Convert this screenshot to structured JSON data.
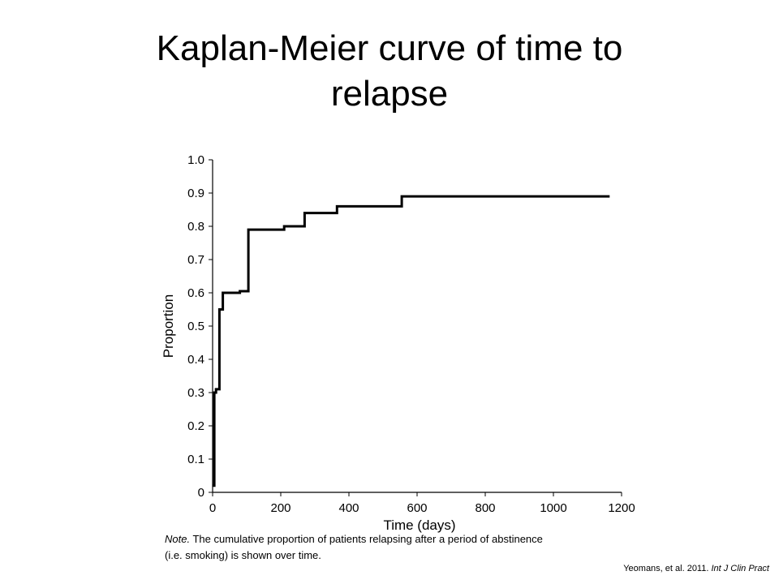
{
  "slide": {
    "title_line1": "Kaplan-Meier curve of time to",
    "title_line2": "relapse"
  },
  "note": {
    "prefix": "Note.",
    "line1": " The cumulative proportion of patients relapsing after a period of abstinence",
    "line2": "(i.e. smoking)  is shown over time."
  },
  "citation": {
    "text": "Yeomans, et al. 2011. ",
    "journal": "Int J Clin Pract"
  },
  "chart_data": {
    "type": "line",
    "step": true,
    "title": "",
    "xlabel": "Time (days)",
    "ylabel": "Proportion",
    "xlim": [
      0,
      1200
    ],
    "ylim": [
      0,
      1.0
    ],
    "xticks": [
      0,
      200,
      400,
      600,
      800,
      1000,
      1200
    ],
    "xtick_labels": [
      "0",
      "200",
      "400",
      "600",
      "800",
      "1000",
      "1200"
    ],
    "yticks": [
      0,
      0.1,
      0.2,
      0.3,
      0.4,
      0.5,
      0.6,
      0.7,
      0.8,
      0.9,
      1.0
    ],
    "ytick_labels": [
      "0",
      "0.1",
      "0.2",
      "0.3",
      "0.4",
      "0.5",
      "0.6",
      "0.7",
      "0.8",
      "0.9",
      "1.0"
    ],
    "grid": false,
    "line_color": "#000000",
    "series": [
      {
        "x": [
          0,
          5,
          10,
          20,
          30,
          80,
          105,
          185,
          210,
          260,
          270,
          360,
          365,
          545,
          555,
          1165
        ],
        "y": [
          0.02,
          0.3,
          0.31,
          0.55,
          0.6,
          0.605,
          0.79,
          0.79,
          0.8,
          0.8,
          0.84,
          0.84,
          0.86,
          0.86,
          0.89,
          0.89
        ]
      }
    ]
  }
}
